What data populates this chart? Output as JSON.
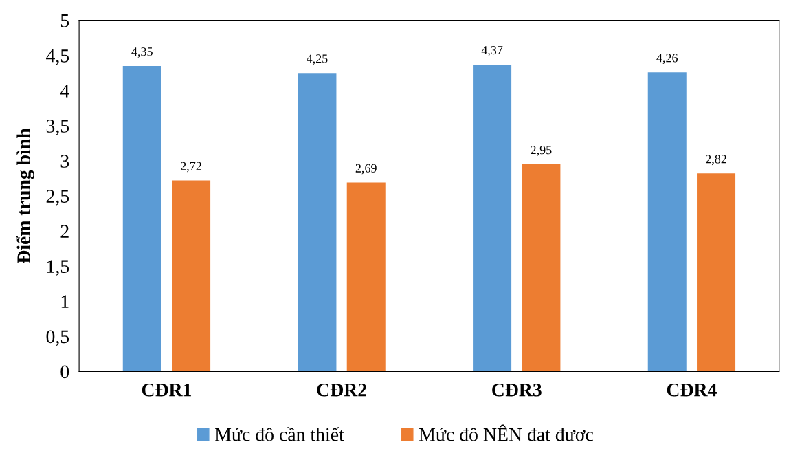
{
  "chart_data": {
    "type": "bar",
    "ylabel": "Điểm trung bình",
    "categories": [
      "CĐR1",
      "CĐR2",
      "CĐR3",
      "CĐR4"
    ],
    "series": [
      {
        "name": "Mức đô cần thiết",
        "color": "#5b9bd5",
        "values": [
          4.35,
          4.25,
          4.37,
          4.26
        ]
      },
      {
        "name": "Mức đô NÊN đat đươc",
        "color": "#ed7d31",
        "values": [
          2.72,
          2.69,
          2.95,
          2.82
        ]
      }
    ],
    "value_labels": [
      [
        "4,35",
        "4,25",
        "4,37",
        "4,26"
      ],
      [
        "2,72",
        "2,69",
        "2,95",
        "2,82"
      ]
    ],
    "ylim": [
      0,
      5
    ],
    "yticks": [
      0,
      {
        "value": 0.5,
        "label": "0,5"
      },
      1,
      {
        "value": 1.5,
        "label": "1,5"
      },
      2,
      {
        "value": 2.5,
        "label": "2,5"
      },
      3,
      {
        "value": 3.5,
        "label": "3,5"
      },
      4,
      {
        "value": 4.5,
        "label": "4,5"
      },
      5
    ],
    "grid": false,
    "legend": "bottom"
  }
}
